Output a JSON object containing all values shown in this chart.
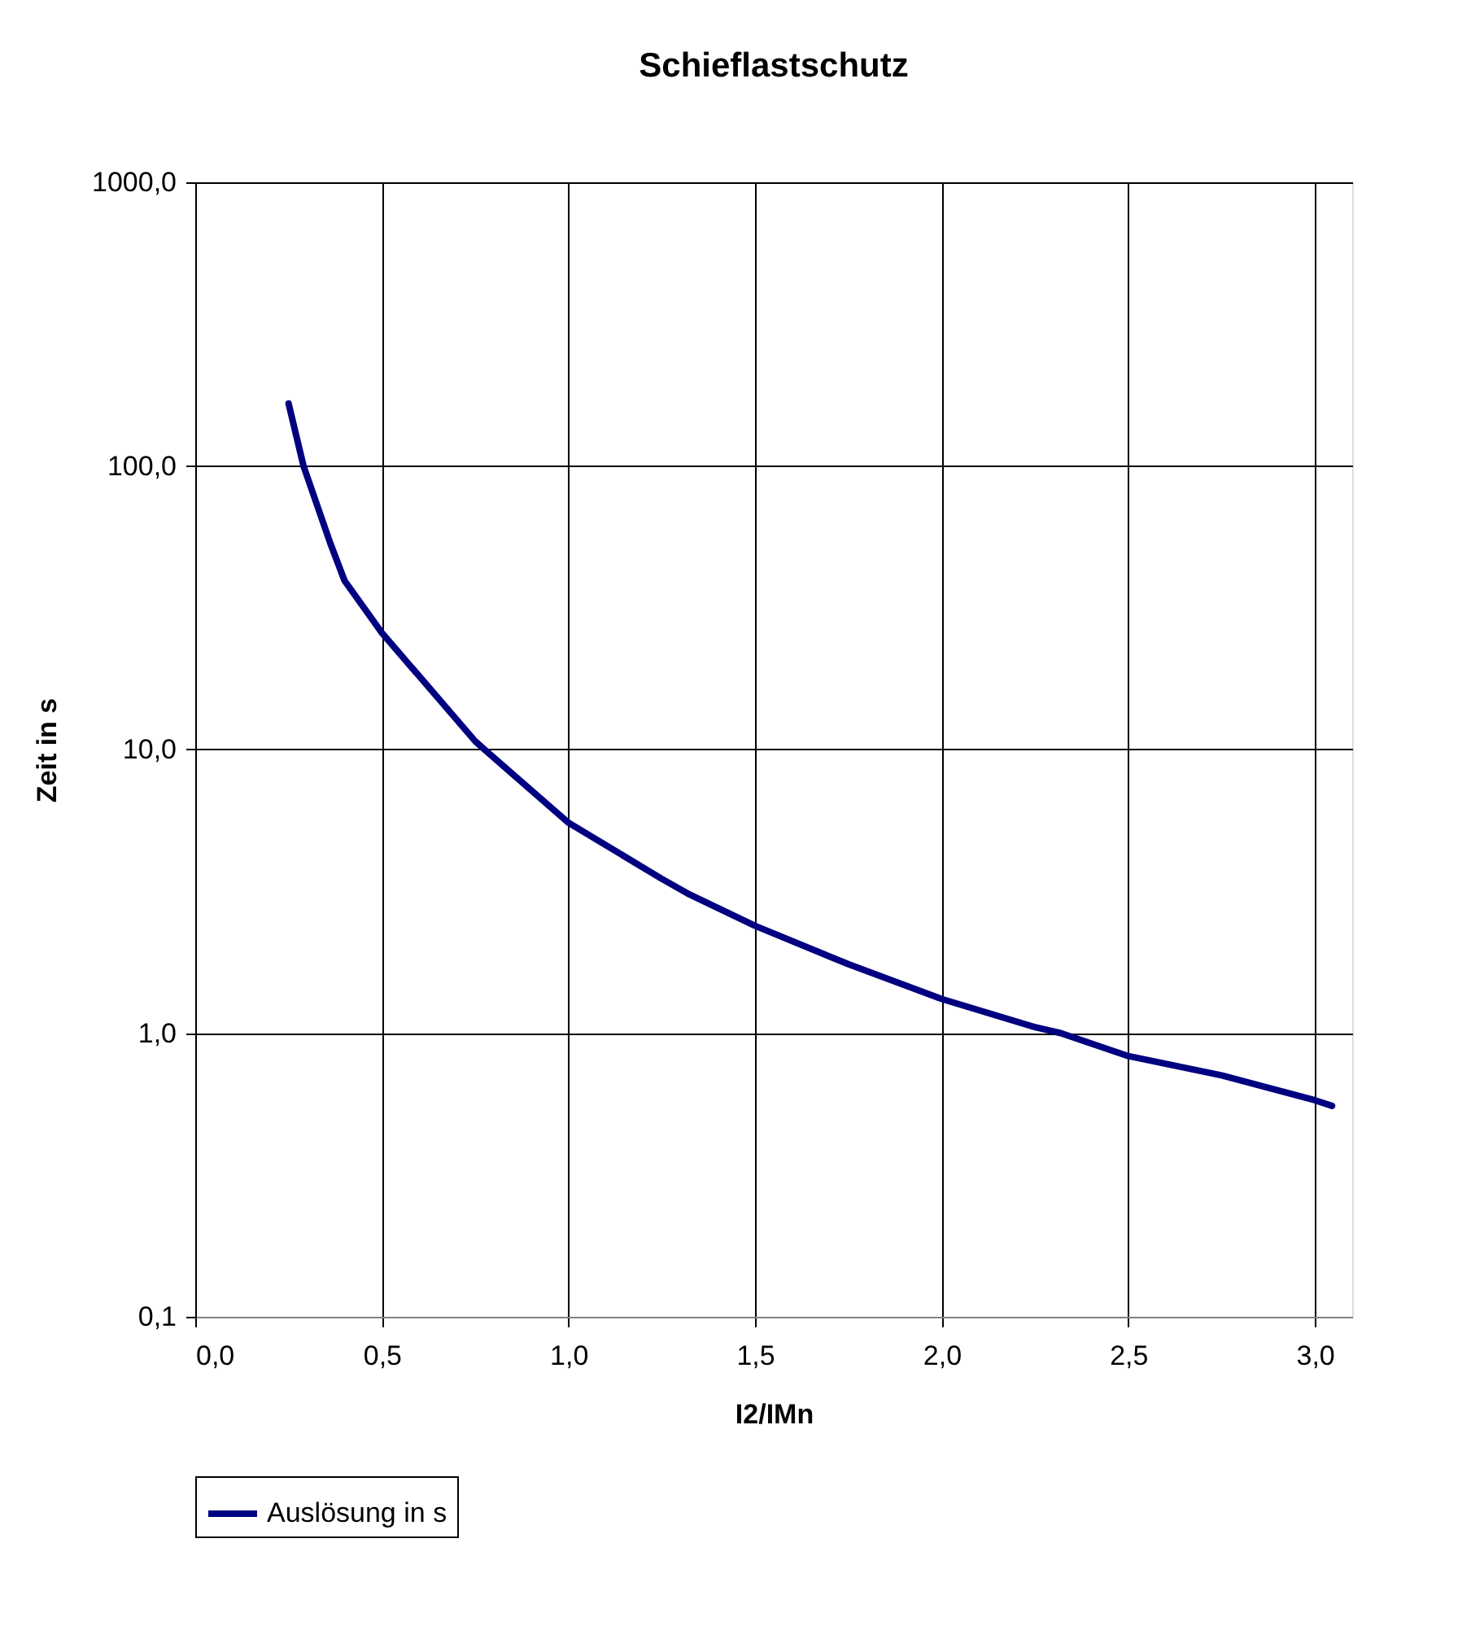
{
  "chart_data": {
    "type": "line",
    "title": "Schieflastschutz",
    "xlabel": "I2/IMn",
    "ylabel": "Zeit in s",
    "x": [
      0.25,
      0.29,
      0.362,
      0.4,
      0.5,
      0.75,
      0.775,
      1.0,
      1.25,
      1.319,
      1.5,
      1.75,
      2.0,
      2.25,
      2.319,
      2.5,
      2.75,
      3.0,
      3.046
    ],
    "series": [
      {
        "name": "Auslösung in s",
        "color": "#000080",
        "values": [
          166,
          100,
          53.3,
          39.4,
          25.8,
          10.7,
          10,
          5.52,
          3.5,
          3.11,
          2.39,
          1.75,
          1.32,
          1.05,
          1.0,
          0.83,
          0.71,
          0.58,
          0.554
        ]
      }
    ],
    "log": "y",
    "xlim": [
      0,
      3.1
    ],
    "ylim": [
      0.1,
      1000
    ],
    "xticks": [
      {
        "value": 0,
        "label": "0,0"
      },
      {
        "value": 0.5,
        "label": "0,5"
      },
      {
        "value": 1,
        "label": "1,0"
      },
      {
        "value": 1.5,
        "label": "1,5"
      },
      {
        "value": 2,
        "label": "2,0"
      },
      {
        "value": 2.5,
        "label": "2,5"
      },
      {
        "value": 3,
        "label": "3,0"
      }
    ],
    "yticks": [
      {
        "value": 0.1,
        "label": "0,1"
      },
      {
        "value": 1,
        "label": "1,0"
      },
      {
        "value": 10,
        "label": "10,0"
      },
      {
        "value": 100,
        "label": "100,0"
      },
      {
        "value": 1000,
        "label": "1000,0"
      }
    ],
    "grid": true,
    "legend": "bottom",
    "marker": "none",
    "line_style": "solid"
  }
}
